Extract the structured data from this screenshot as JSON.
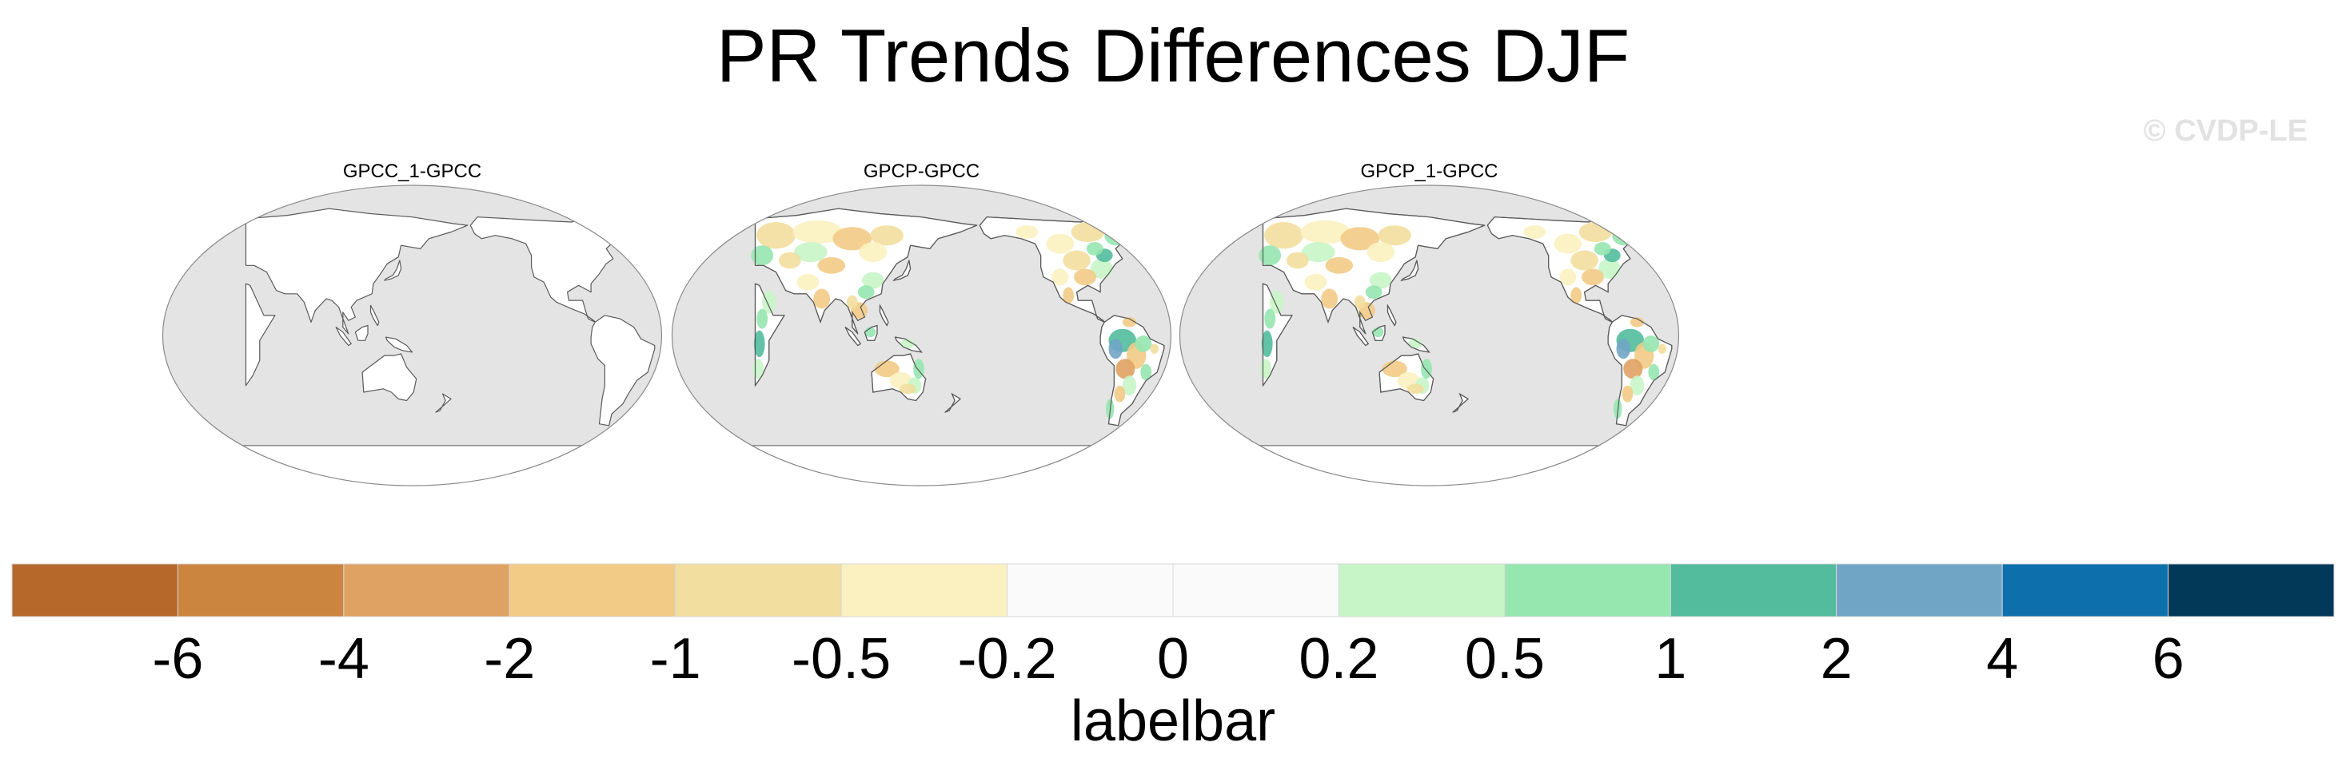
{
  "title": "PR Trends Differences DJF",
  "credit": "© CVDP-LE",
  "panels": [
    {
      "title": "GPCC_1-GPCC",
      "difference_shown": false
    },
    {
      "title": "GPCP-GPCC",
      "difference_shown": true
    },
    {
      "title": "GPCP_1-GPCC",
      "difference_shown": true
    }
  ],
  "colorbar": {
    "label": "labelbar",
    "ticks": [
      "-6",
      "-4",
      "-2",
      "-1",
      "-0.5",
      "-0.2",
      "0",
      "0.2",
      "0.5",
      "1",
      "2",
      "4",
      "6"
    ],
    "colors": [
      "#b5682a",
      "#cc853f",
      "#e0a263",
      "#f2cb86",
      "#f2de9e",
      "#fbf1c0",
      "#fafafa",
      "#fafafa",
      "#c8f5c8",
      "#96e6b0",
      "#52bc9d",
      "#70a5c5",
      "#0e6fad",
      "#023858"
    ]
  },
  "colors": {
    "ocean": "#e4e4e4",
    "land": "#ffffff",
    "coast": "#5a5a5a",
    "credit": "#e2e2e2"
  }
}
